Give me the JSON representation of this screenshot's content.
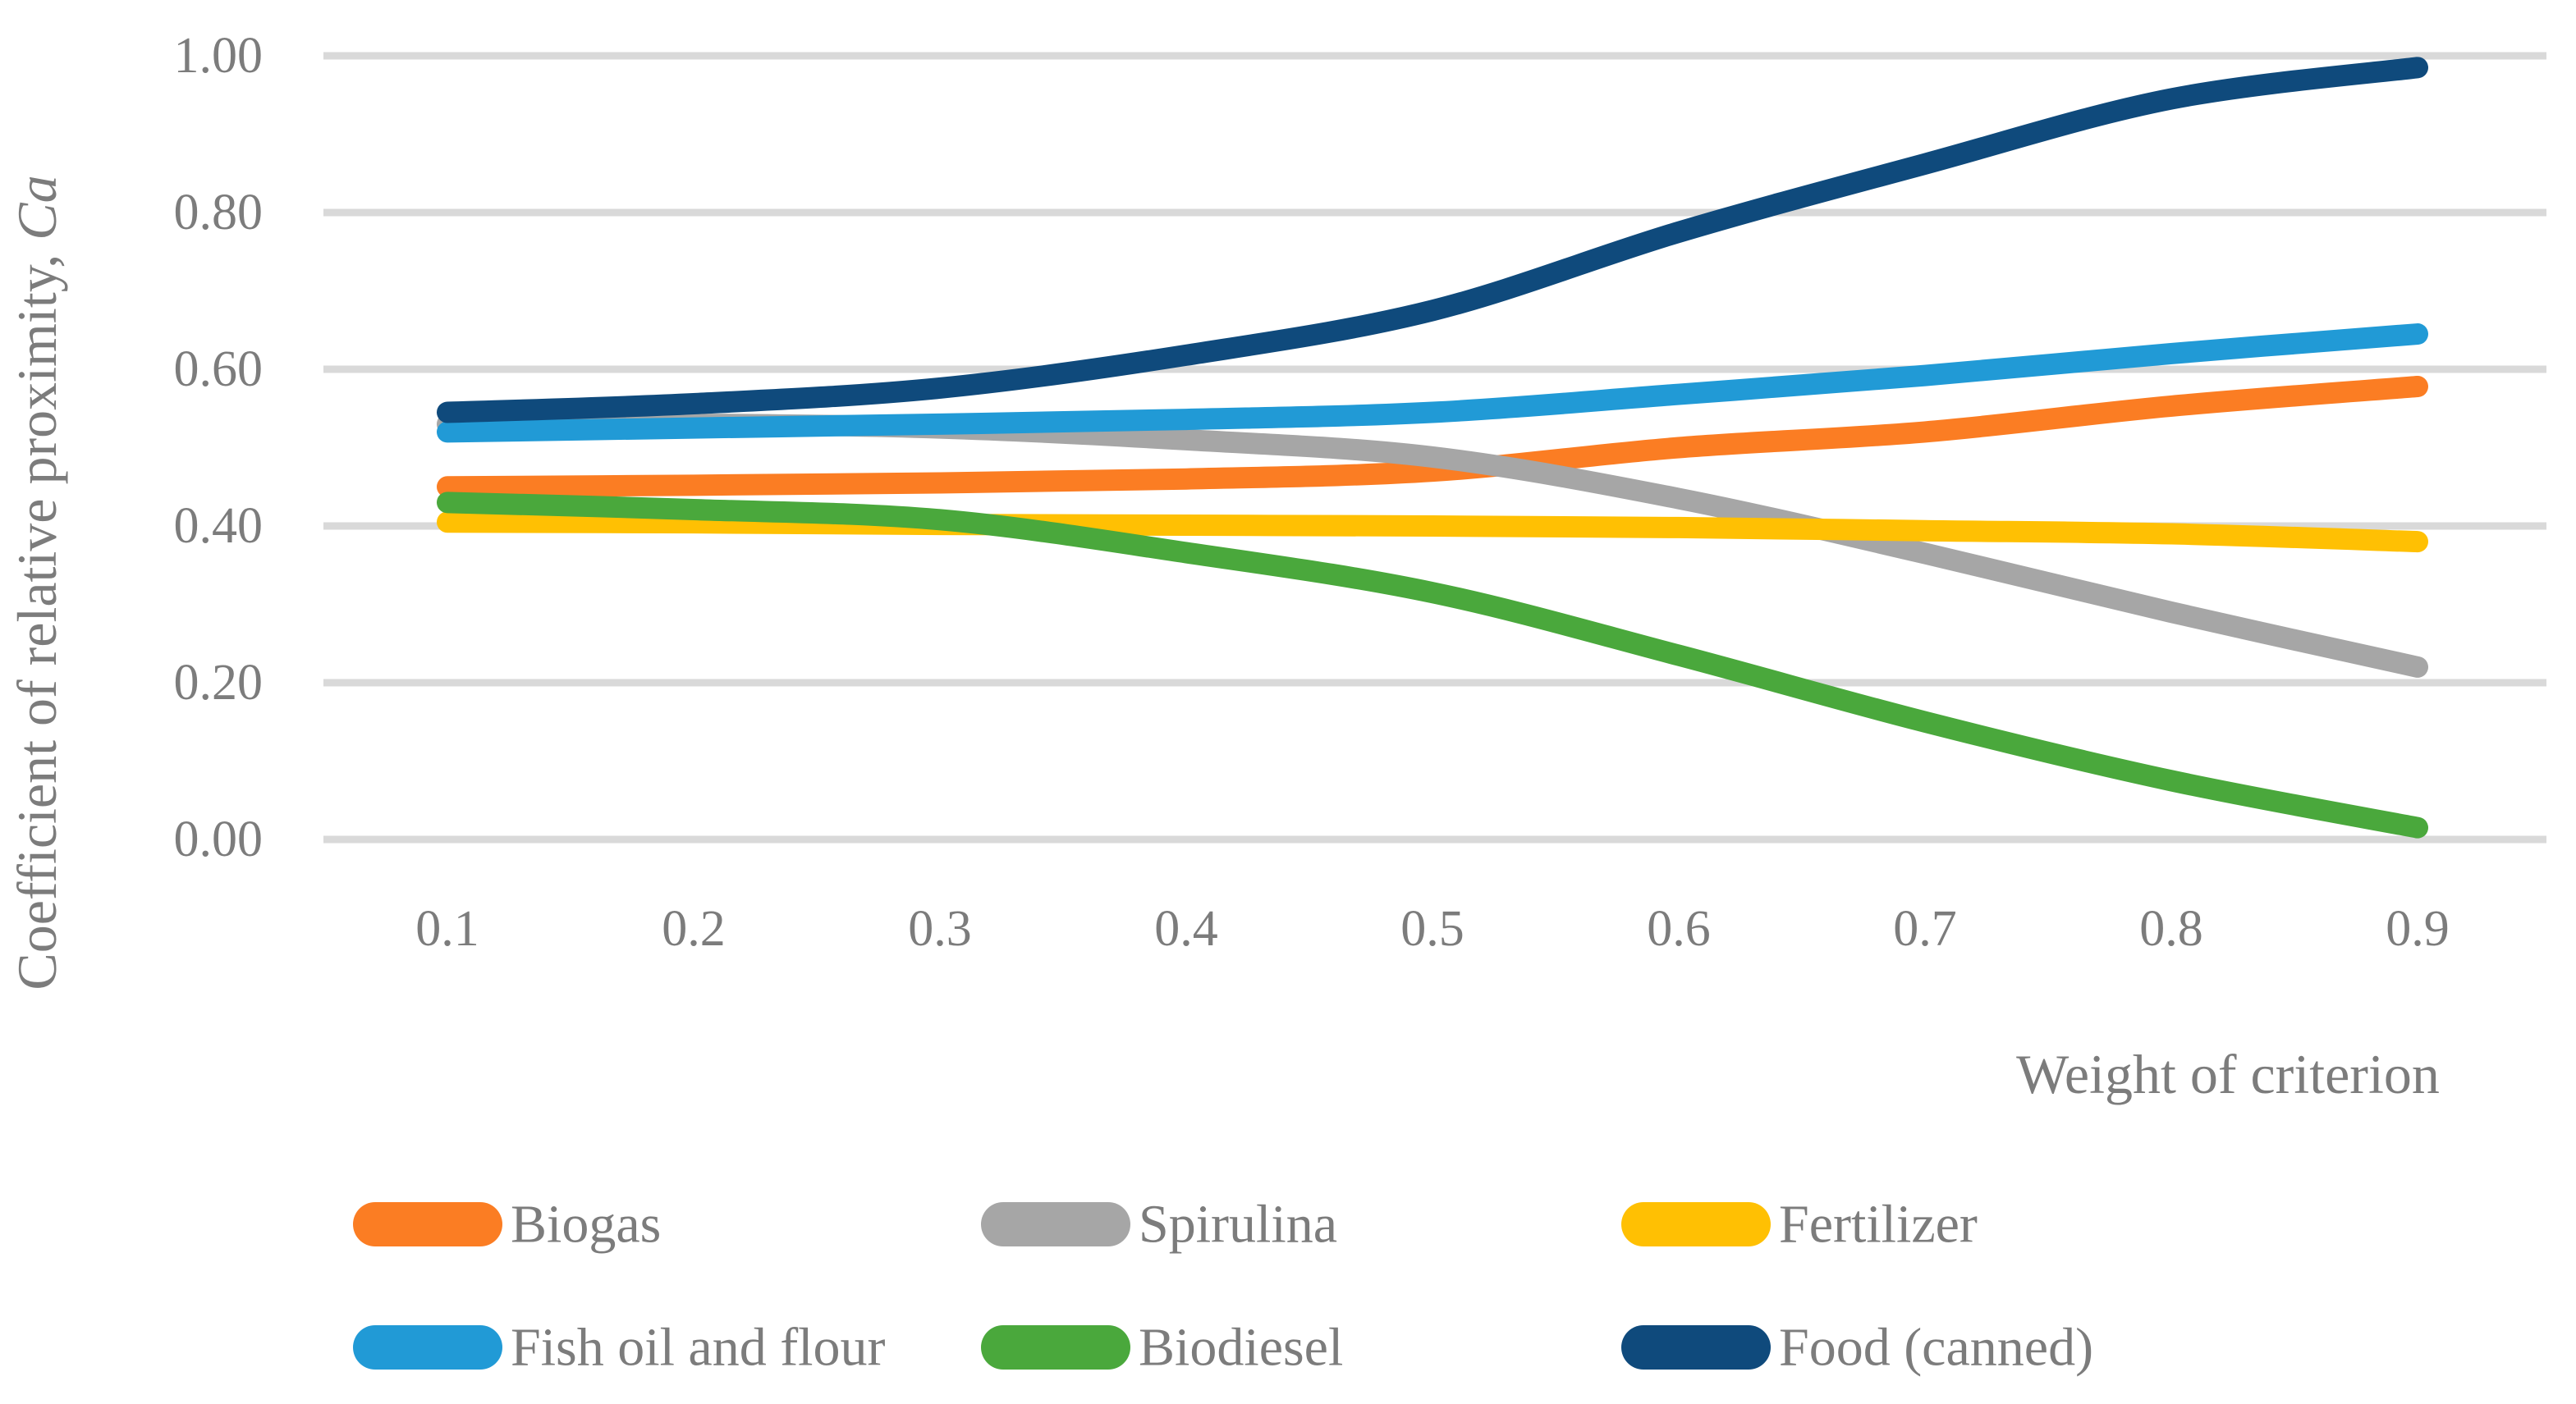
{
  "chart_data": {
    "type": "line",
    "title": "",
    "xlabel": "Weight of criterion",
    "ylabel_main": "Coefficient of relative proximity, ",
    "ylabel_var": "Ca",
    "x": [
      0.1,
      0.2,
      0.3,
      0.4,
      0.5,
      0.6,
      0.7,
      0.8,
      0.9
    ],
    "x_tick_labels": [
      "0.1",
      "0.2",
      "0.3",
      "0.4",
      "0.5",
      "0.6",
      "0.7",
      "0.8",
      "0.9"
    ],
    "y_tick_labels": [
      "0.00",
      "0.20",
      "0.40",
      "0.60",
      "0.80",
      "1.00"
    ],
    "y_ticks": [
      0.0,
      0.2,
      0.4,
      0.6,
      0.8,
      1.0
    ],
    "ylim": [
      0.0,
      1.0
    ],
    "grid": "horizontal-only",
    "legend_position": "bottom",
    "series": [
      {
        "name": "Biogas",
        "color": "#FB7D23",
        "values": [
          0.45,
          0.452,
          0.455,
          0.46,
          0.47,
          0.5,
          0.52,
          0.553,
          0.578
        ]
      },
      {
        "name": "Spirulina",
        "color": "#A6A6A6",
        "values": [
          0.53,
          0.53,
          0.525,
          0.51,
          0.488,
          0.435,
          0.365,
          0.29,
          0.22
        ]
      },
      {
        "name": "Fertilizer",
        "color": "#FFC003",
        "values": [
          0.405,
          0.404,
          0.402,
          0.401,
          0.4,
          0.398,
          0.394,
          0.39,
          0.38
        ]
      },
      {
        "name": "Fish oil and flour",
        "color": "#219AD6",
        "values": [
          0.52,
          0.525,
          0.53,
          0.536,
          0.545,
          0.568,
          0.592,
          0.62,
          0.645
        ]
      },
      {
        "name": "Biodiesel",
        "color": "#4AA83C",
        "values": [
          0.43,
          0.421,
          0.408,
          0.366,
          0.315,
          0.235,
          0.15,
          0.075,
          0.015
        ]
      },
      {
        "name": "Food (canned)",
        "color": "#0F4A7C",
        "values": [
          0.545,
          0.556,
          0.576,
          0.618,
          0.675,
          0.775,
          0.862,
          0.945,
          0.985
        ]
      }
    ],
    "legend_rows": [
      [
        0,
        1,
        2
      ],
      [
        3,
        4,
        5
      ]
    ]
  },
  "style_colors": {
    "gridline": "#D9D9D9",
    "label_text": "#7C7C7C"
  }
}
